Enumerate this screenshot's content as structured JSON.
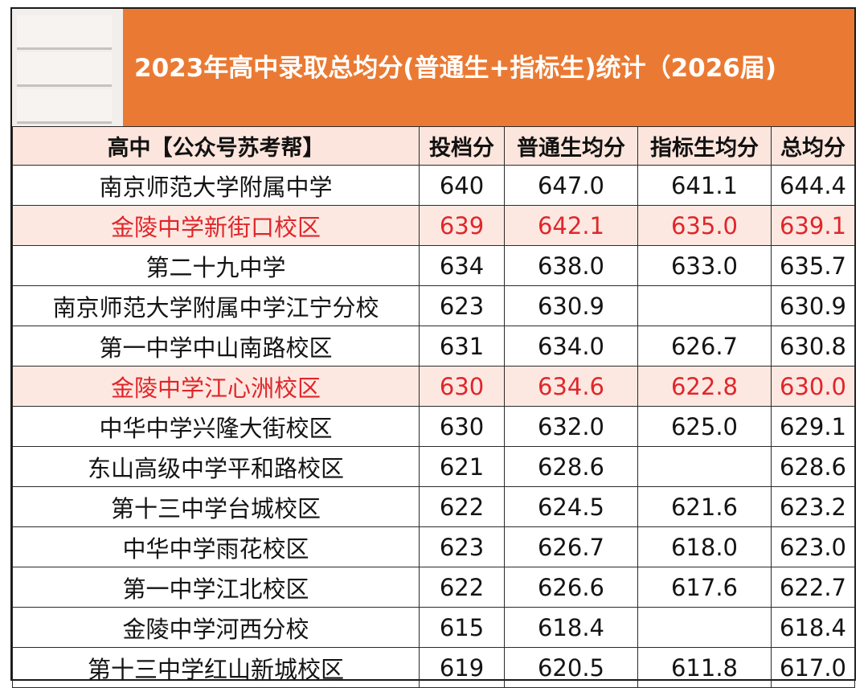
{
  "title": "2023年高中录取总均分(普通生+指标生)统计（2026届)",
  "table": {
    "headers": [
      "高中【公众号苏考帮】",
      "投档分",
      "普通生均分",
      "指标生均分",
      "总均分"
    ],
    "rows": [
      {
        "name": "南京师范大学附属中学",
        "toudang": "640",
        "putong": "647.0",
        "zhibiao": "641.1",
        "total": "644.4",
        "highlight": false
      },
      {
        "name": "金陵中学新街口校区",
        "toudang": "639",
        "putong": "642.1",
        "zhibiao": "635.0",
        "total": "639.1",
        "highlight": true
      },
      {
        "name": "第二十九中学",
        "toudang": "634",
        "putong": "638.0",
        "zhibiao": "633.0",
        "total": "635.7",
        "highlight": false
      },
      {
        "name": "南京师范大学附属中学江宁分校",
        "toudang": "623",
        "putong": "630.9",
        "zhibiao": "",
        "total": "630.9",
        "highlight": false
      },
      {
        "name": "第一中学中山南路校区",
        "toudang": "631",
        "putong": "634.0",
        "zhibiao": "626.7",
        "total": "630.8",
        "highlight": false
      },
      {
        "name": "金陵中学江心洲校区",
        "toudang": "630",
        "putong": "634.6",
        "zhibiao": "622.8",
        "total": "630.0",
        "highlight": true
      },
      {
        "name": "中华中学兴隆大街校区",
        "toudang": "630",
        "putong": "632.0",
        "zhibiao": "625.0",
        "total": "629.1",
        "highlight": false
      },
      {
        "name": "东山高级中学平和路校区",
        "toudang": "621",
        "putong": "628.6",
        "zhibiao": "",
        "total": "628.6",
        "highlight": false
      },
      {
        "name": "第十三中学台城校区",
        "toudang": "622",
        "putong": "624.5",
        "zhibiao": "621.6",
        "total": "623.2",
        "highlight": false
      },
      {
        "name": "中华中学雨花校区",
        "toudang": "623",
        "putong": "626.7",
        "zhibiao": "618.0",
        "total": "623.0",
        "highlight": false
      },
      {
        "name": "第一中学江北校区",
        "toudang": "622",
        "putong": "626.6",
        "zhibiao": "617.6",
        "total": "622.7",
        "highlight": false
      },
      {
        "name": "金陵中学河西分校",
        "toudang": "615",
        "putong": "618.4",
        "zhibiao": "",
        "total": "618.4",
        "highlight": false
      },
      {
        "name": "第十三中学红山新城校区",
        "toudang": "619",
        "putong": "620.5",
        "zhibiao": "611.8",
        "total": "617.0",
        "highlight": false
      }
    ]
  },
  "colors": {
    "title_bar": "#ea7a33",
    "header_bg": "#fce5dc",
    "highlight_bg": "#fce8e1",
    "highlight_text": "#e0262b"
  }
}
